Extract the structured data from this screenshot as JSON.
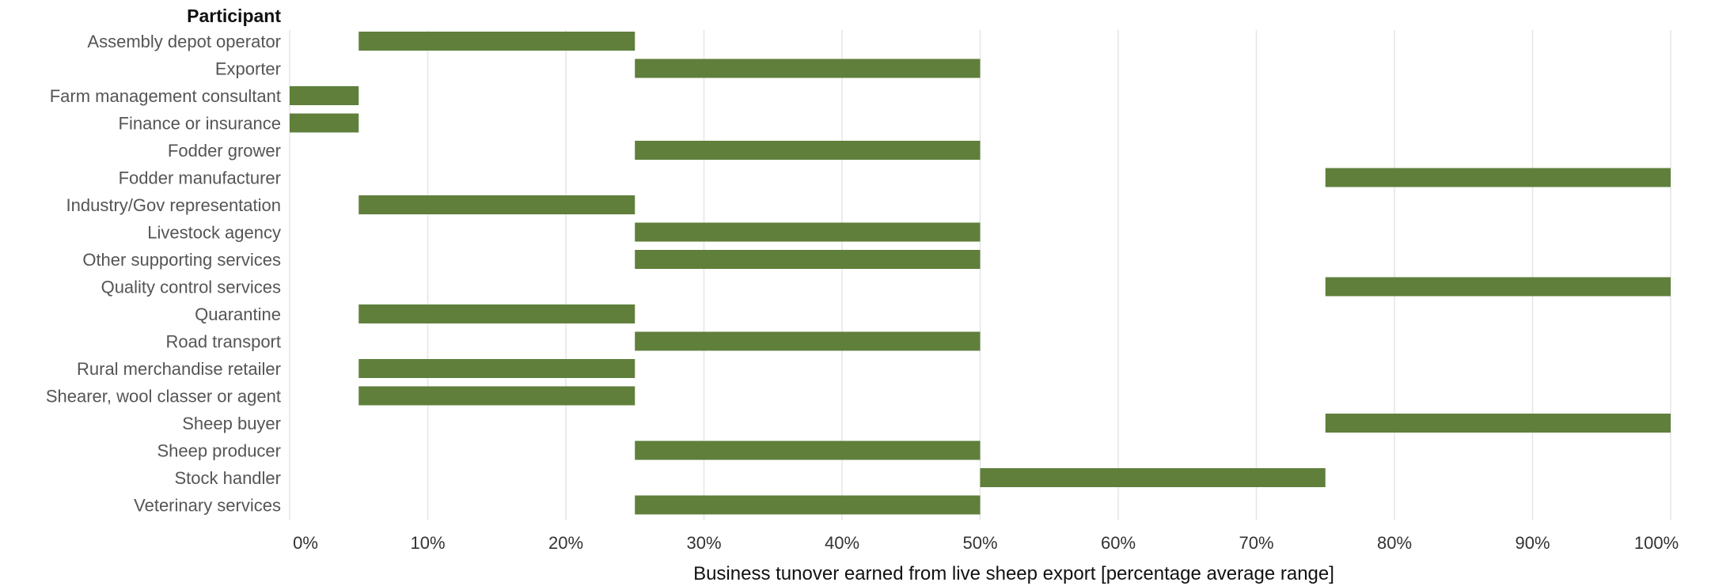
{
  "chart_data": {
    "type": "bar",
    "orientation": "horizontal-range",
    "row_header": "Participant",
    "xlabel": "Business tunover earned from live sheep export  [percentage average range]",
    "xlim": [
      0,
      100
    ],
    "x_ticks": [
      "0%",
      "10%",
      "20%",
      "30%",
      "40%",
      "50%",
      "60%",
      "70%",
      "80%",
      "90%",
      "100%"
    ],
    "grid": true,
    "bar_color": "#5f7f3b",
    "categories": [
      "Assembly depot operator",
      "Exporter",
      "Farm management consultant",
      "Finance or insurance",
      "Fodder grower",
      "Fodder manufacturer",
      "Industry/Gov representation",
      "Livestock agency",
      "Other supporting services",
      "Quality control services",
      "Quarantine",
      "Road transport",
      "Rural merchandise retailer",
      "Shearer, wool classer or agent",
      "Sheep buyer",
      "Sheep producer",
      "Stock handler",
      "Veterinary services"
    ],
    "ranges": [
      [
        5,
        25
      ],
      [
        25,
        50
      ],
      [
        0,
        5
      ],
      [
        0,
        5
      ],
      [
        25,
        50
      ],
      [
        75,
        100
      ],
      [
        5,
        25
      ],
      [
        25,
        50
      ],
      [
        25,
        50
      ],
      [
        75,
        100
      ],
      [
        5,
        25
      ],
      [
        25,
        50
      ],
      [
        5,
        25
      ],
      [
        5,
        25
      ],
      [
        75,
        100
      ],
      [
        25,
        50
      ],
      [
        50,
        75
      ],
      [
        25,
        50
      ]
    ]
  }
}
